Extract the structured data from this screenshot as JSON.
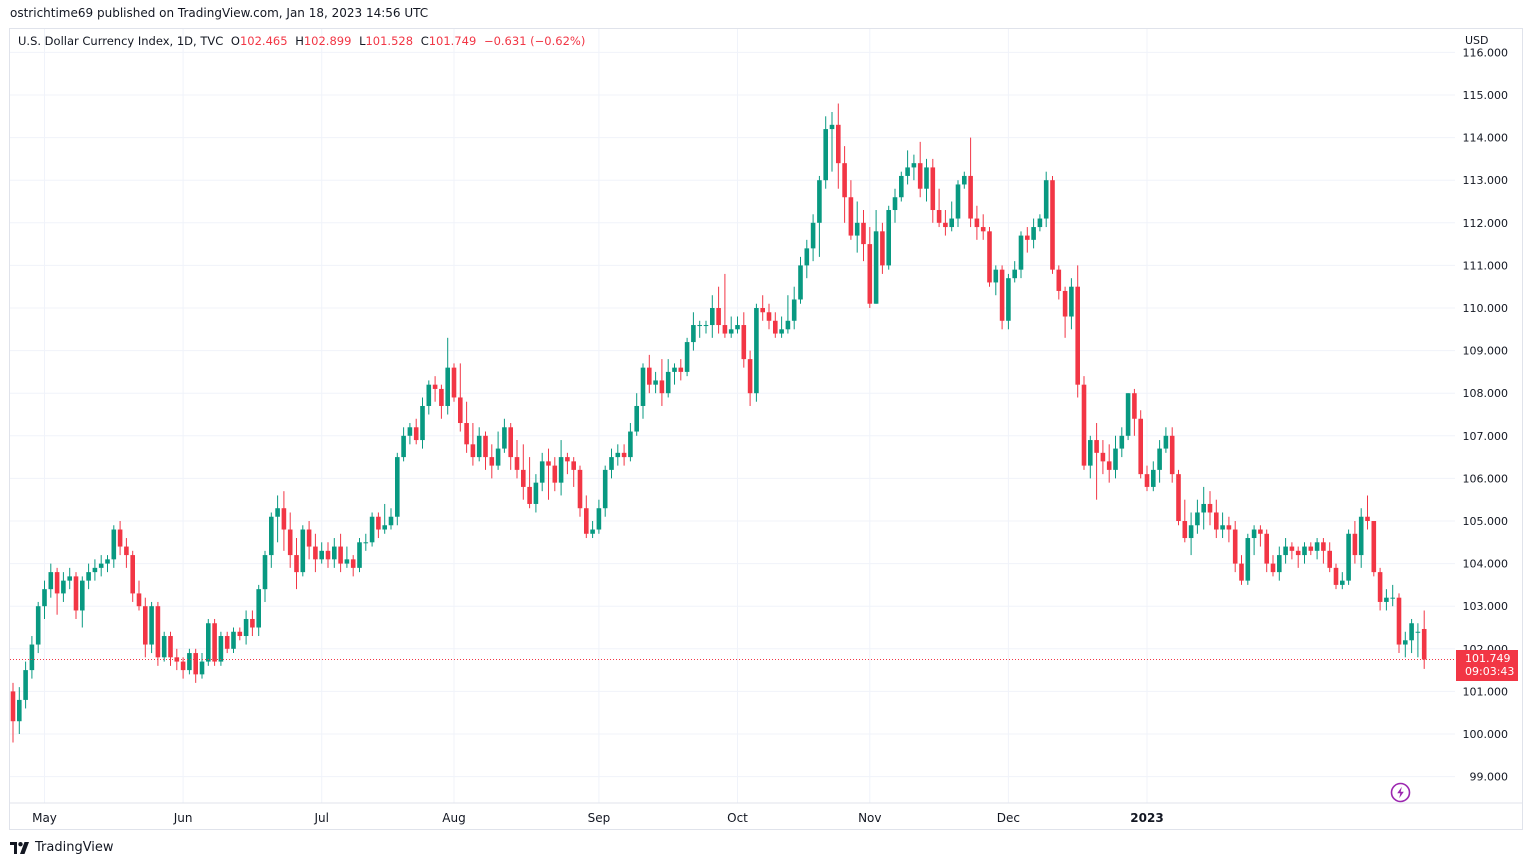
{
  "publication": {
    "author": "ostrichtime69",
    "text": "published on TradingView.com, Jan 18, 2023 14:56 UTC"
  },
  "legend": {
    "symbol": "U.S. Dollar Currency Index, 1D, TVC",
    "o_label": "O",
    "o_value": "102.465",
    "h_label": "H",
    "h_value": "102.899",
    "l_label": "L",
    "l_value": "101.528",
    "c_label": "C",
    "c_value": "101.749",
    "change": "−0.631 (−0.62%)"
  },
  "currency": "USD",
  "last_price": {
    "value": "101.749",
    "countdown": "09:03:43"
  },
  "footer": {
    "brand": "TradingView"
  },
  "colors": {
    "up": "#089981",
    "down": "#f23645",
    "grid": "#f0f3fa",
    "text": "#131722"
  },
  "chart_data": {
    "type": "candlestick",
    "y_ticks": [
      "99.000",
      "100.000",
      "101.000",
      "102.000",
      "103.000",
      "104.000",
      "105.000",
      "106.000",
      "107.000",
      "108.000",
      "109.000",
      "110.000",
      "111.000",
      "112.000",
      "113.000",
      "114.000",
      "115.000",
      "116.000"
    ],
    "ylim": [
      98.8,
      116.0
    ],
    "x_labels": [
      {
        "label": "May",
        "x": "2022-05-02"
      },
      {
        "label": "Jun",
        "x": "2022-06-01"
      },
      {
        "label": "Jul",
        "x": "2022-07-01"
      },
      {
        "label": "Aug",
        "x": "2022-08-01"
      },
      {
        "label": "Sep",
        "x": "2022-09-01"
      },
      {
        "label": "Oct",
        "x": "2022-10-03"
      },
      {
        "label": "Nov",
        "x": "2022-11-01"
      },
      {
        "label": "Dec",
        "x": "2022-12-01"
      },
      {
        "label": "2023",
        "x": "2023-01-02"
      }
    ],
    "last_close": 101.749,
    "candles": [
      [
        101.0,
        100.3,
        101.2,
        99.8
      ],
      [
        100.3,
        100.8,
        101.1,
        100.0
      ],
      [
        100.8,
        101.5,
        101.7,
        100.6
      ],
      [
        101.5,
        102.1,
        102.3,
        101.3
      ],
      [
        102.1,
        103.0,
        103.1,
        101.9
      ],
      [
        103.0,
        103.4,
        103.6,
        102.7
      ],
      [
        103.4,
        103.8,
        104.0,
        103.2
      ],
      [
        103.8,
        103.3,
        103.9,
        102.8
      ],
      [
        103.3,
        103.6,
        103.8,
        103.1
      ],
      [
        103.6,
        103.7,
        103.9,
        103.4
      ],
      [
        103.7,
        102.9,
        103.8,
        102.7
      ],
      [
        102.9,
        103.6,
        103.7,
        102.5
      ],
      [
        103.6,
        103.8,
        104.0,
        103.4
      ],
      [
        103.8,
        103.9,
        104.1,
        103.6
      ],
      [
        103.9,
        104.0,
        104.2,
        103.7
      ],
      [
        104.0,
        104.1,
        104.2,
        103.8
      ],
      [
        104.1,
        104.8,
        104.9,
        103.9
      ],
      [
        104.8,
        104.4,
        105.0,
        104.2
      ],
      [
        104.4,
        104.2,
        104.6,
        103.9
      ],
      [
        104.2,
        103.3,
        104.3,
        103.1
      ],
      [
        103.3,
        103.0,
        103.6,
        102.9
      ],
      [
        103.0,
        102.1,
        103.2,
        101.8
      ],
      [
        102.1,
        103.0,
        103.1,
        101.9
      ],
      [
        103.0,
        101.8,
        103.1,
        101.6
      ],
      [
        101.8,
        102.3,
        102.4,
        101.7
      ],
      [
        102.3,
        101.8,
        102.4,
        101.6
      ],
      [
        101.8,
        101.7,
        102.0,
        101.5
      ],
      [
        101.7,
        101.5,
        101.8,
        101.3
      ],
      [
        101.5,
        101.9,
        102.0,
        101.4
      ],
      [
        101.9,
        101.4,
        102.0,
        101.2
      ],
      [
        101.4,
        101.7,
        101.9,
        101.3
      ],
      [
        101.7,
        102.6,
        102.7,
        101.6
      ],
      [
        102.6,
        101.7,
        102.7,
        101.6
      ],
      [
        101.7,
        102.3,
        102.4,
        101.6
      ],
      [
        102.3,
        102.0,
        102.4,
        101.9
      ],
      [
        102.0,
        102.4,
        102.5,
        101.9
      ],
      [
        102.4,
        102.3,
        102.5,
        102.2
      ],
      [
        102.3,
        102.7,
        102.9,
        102.1
      ],
      [
        102.7,
        102.5,
        102.9,
        102.3
      ],
      [
        102.5,
        103.4,
        103.5,
        102.3
      ],
      [
        103.4,
        104.2,
        104.3,
        103.1
      ],
      [
        104.2,
        105.1,
        105.2,
        103.9
      ],
      [
        105.1,
        105.3,
        105.6,
        104.5
      ],
      [
        105.3,
        104.8,
        105.7,
        104.3
      ],
      [
        104.8,
        104.2,
        105.2,
        103.9
      ],
      [
        104.2,
        103.8,
        104.6,
        103.4
      ],
      [
        103.8,
        104.8,
        104.9,
        103.7
      ],
      [
        104.8,
        104.4,
        105.0,
        104.1
      ],
      [
        104.4,
        104.1,
        104.7,
        103.8
      ],
      [
        104.1,
        104.3,
        104.5,
        104.0
      ],
      [
        104.3,
        104.1,
        104.5,
        103.9
      ],
      [
        104.1,
        104.4,
        104.6,
        103.9
      ],
      [
        104.4,
        104.0,
        104.7,
        103.8
      ],
      [
        104.0,
        104.1,
        104.4,
        103.9
      ],
      [
        104.1,
        103.9,
        104.2,
        103.7
      ],
      [
        103.9,
        104.5,
        104.6,
        103.8
      ],
      [
        104.5,
        104.5,
        104.7,
        104.3
      ],
      [
        104.5,
        105.1,
        105.2,
        104.4
      ],
      [
        105.1,
        104.8,
        105.2,
        104.6
      ],
      [
        104.8,
        104.9,
        105.4,
        104.7
      ],
      [
        104.9,
        105.1,
        105.3,
        104.8
      ],
      [
        105.1,
        106.5,
        106.6,
        104.9
      ],
      [
        106.5,
        107.0,
        107.2,
        106.4
      ],
      [
        107.0,
        107.2,
        107.3,
        106.8
      ],
      [
        107.2,
        106.9,
        107.4,
        106.8
      ],
      [
        106.9,
        107.7,
        107.9,
        106.7
      ],
      [
        107.7,
        108.2,
        108.3,
        107.5
      ],
      [
        108.2,
        108.1,
        108.4,
        107.8
      ],
      [
        108.1,
        107.7,
        108.2,
        107.4
      ],
      [
        107.7,
        108.6,
        109.3,
        107.5
      ],
      [
        108.6,
        107.9,
        108.7,
        107.8
      ],
      [
        107.9,
        107.3,
        108.7,
        107.1
      ],
      [
        107.3,
        106.8,
        107.8,
        106.6
      ],
      [
        106.8,
        106.5,
        107.3,
        106.3
      ],
      [
        106.5,
        107.0,
        107.2,
        106.4
      ],
      [
        107.0,
        106.5,
        107.1,
        106.2
      ],
      [
        106.5,
        106.3,
        106.8,
        106.0
      ],
      [
        106.3,
        106.7,
        107.1,
        106.2
      ],
      [
        106.7,
        107.2,
        107.4,
        106.6
      ],
      [
        107.2,
        106.5,
        107.3,
        106.2
      ],
      [
        106.5,
        106.2,
        106.9,
        106.0
      ],
      [
        106.2,
        105.8,
        106.8,
        105.5
      ],
      [
        105.8,
        105.4,
        106.5,
        105.3
      ],
      [
        105.4,
        105.9,
        106.1,
        105.2
      ],
      [
        105.9,
        106.4,
        106.6,
        105.7
      ],
      [
        106.4,
        106.3,
        106.7,
        105.5
      ],
      [
        106.3,
        105.9,
        106.5,
        105.7
      ],
      [
        105.9,
        106.5,
        106.9,
        105.6
      ],
      [
        106.5,
        106.4,
        106.6,
        106.1
      ],
      [
        106.4,
        106.2,
        106.5,
        105.8
      ],
      [
        106.2,
        105.3,
        106.3,
        105.1
      ],
      [
        105.3,
        104.7,
        105.6,
        104.6
      ],
      [
        104.7,
        104.8,
        105.0,
        104.6
      ],
      [
        104.8,
        105.3,
        105.5,
        104.7
      ],
      [
        105.3,
        106.2,
        106.3,
        105.1
      ],
      [
        106.2,
        106.5,
        106.7,
        106.0
      ],
      [
        106.5,
        106.6,
        106.8,
        106.3
      ],
      [
        106.6,
        106.5,
        106.8,
        106.3
      ],
      [
        106.5,
        107.1,
        107.3,
        106.4
      ],
      [
        107.1,
        107.7,
        108.0,
        107.0
      ],
      [
        107.7,
        108.6,
        108.7,
        107.4
      ],
      [
        108.6,
        108.2,
        108.9,
        108.0
      ],
      [
        108.2,
        108.3,
        108.5,
        108.0
      ],
      [
        108.3,
        108.0,
        108.8,
        107.7
      ],
      [
        108.0,
        108.5,
        108.8,
        107.9
      ],
      [
        108.5,
        108.6,
        108.7,
        108.2
      ],
      [
        108.6,
        108.5,
        108.8,
        108.3
      ],
      [
        108.5,
        109.2,
        109.3,
        108.4
      ],
      [
        109.2,
        109.6,
        109.9,
        109.0
      ],
      [
        109.6,
        109.6,
        109.7,
        109.3
      ],
      [
        109.6,
        109.6,
        109.7,
        109.4
      ],
      [
        109.6,
        110.0,
        110.3,
        109.3
      ],
      [
        110.0,
        109.6,
        110.5,
        109.4
      ],
      [
        109.6,
        109.4,
        110.8,
        109.3
      ],
      [
        109.4,
        109.5,
        109.8,
        109.3
      ],
      [
        109.5,
        109.6,
        109.8,
        109.4
      ],
      [
        109.6,
        108.8,
        109.9,
        108.6
      ],
      [
        108.8,
        108.0,
        109.0,
        107.7
      ],
      [
        108.0,
        110.0,
        110.1,
        107.8
      ],
      [
        110.0,
        109.9,
        110.3,
        109.7
      ],
      [
        109.9,
        109.7,
        110.1,
        109.5
      ],
      [
        109.7,
        109.4,
        109.9,
        109.3
      ],
      [
        109.4,
        109.5,
        109.8,
        109.3
      ],
      [
        109.5,
        109.7,
        110.3,
        109.4
      ],
      [
        109.7,
        110.2,
        110.5,
        109.5
      ],
      [
        110.2,
        111.0,
        111.2,
        110.1
      ],
      [
        111.0,
        111.4,
        111.6,
        110.7
      ],
      [
        111.4,
        112.0,
        112.2,
        111.1
      ],
      [
        112.0,
        113.0,
        113.1,
        111.2
      ],
      [
        113.0,
        114.2,
        114.5,
        112.8
      ],
      [
        114.2,
        114.3,
        114.6,
        113.2
      ],
      [
        114.3,
        113.4,
        114.8,
        112.8
      ],
      [
        113.4,
        112.6,
        113.8,
        112.0
      ],
      [
        112.6,
        111.7,
        113.0,
        111.6
      ],
      [
        111.7,
        112.0,
        112.5,
        111.3
      ],
      [
        112.0,
        111.5,
        112.3,
        111.1
      ],
      [
        111.5,
        110.1,
        111.9,
        110.0
      ],
      [
        110.1,
        111.8,
        112.3,
        110.1
      ],
      [
        111.8,
        111.0,
        112.0,
        110.8
      ],
      [
        111.0,
        112.3,
        112.4,
        110.9
      ],
      [
        112.3,
        112.6,
        112.8,
        112.0
      ],
      [
        112.6,
        113.1,
        113.2,
        112.5
      ],
      [
        113.1,
        113.3,
        113.7,
        112.9
      ],
      [
        113.3,
        113.4,
        113.6,
        113.0
      ],
      [
        113.4,
        112.8,
        113.9,
        112.6
      ],
      [
        112.8,
        113.3,
        113.5,
        112.5
      ],
      [
        113.3,
        112.3,
        113.5,
        112.0
      ],
      [
        112.3,
        112.0,
        112.8,
        111.9
      ],
      [
        112.0,
        111.9,
        112.3,
        111.7
      ],
      [
        111.9,
        112.1,
        112.5,
        111.8
      ],
      [
        112.1,
        112.9,
        113.0,
        111.9
      ],
      [
        112.9,
        113.1,
        113.2,
        112.8
      ],
      [
        113.1,
        112.1,
        114.0,
        111.9
      ],
      [
        112.1,
        111.9,
        112.4,
        111.6
      ],
      [
        111.9,
        111.8,
        112.2,
        111.6
      ],
      [
        111.8,
        110.6,
        111.9,
        110.5
      ],
      [
        110.6,
        110.9,
        111.0,
        110.3
      ],
      [
        110.9,
        109.7,
        111.0,
        109.5
      ],
      [
        109.7,
        110.7,
        110.8,
        109.5
      ],
      [
        110.7,
        110.9,
        111.1,
        110.6
      ],
      [
        110.9,
        111.7,
        111.8,
        110.7
      ],
      [
        111.7,
        111.6,
        111.9,
        111.3
      ],
      [
        111.6,
        111.9,
        112.1,
        111.4
      ],
      [
        111.9,
        112.1,
        112.2,
        111.8
      ],
      [
        112.1,
        113.0,
        113.2,
        111.9
      ],
      [
        113.0,
        110.9,
        113.1,
        110.8
      ],
      [
        110.9,
        110.4,
        111.0,
        110.2
      ],
      [
        110.4,
        109.8,
        110.5,
        109.3
      ],
      [
        109.8,
        110.5,
        110.7,
        109.5
      ],
      [
        110.5,
        108.2,
        111.0,
        107.9
      ],
      [
        108.2,
        106.3,
        108.4,
        106.2
      ],
      [
        106.3,
        106.9,
        107.0,
        106.0
      ],
      [
        106.9,
        106.6,
        107.3,
        105.5
      ],
      [
        106.6,
        106.4,
        106.9,
        106.1
      ],
      [
        106.4,
        106.2,
        106.8,
        105.9
      ],
      [
        106.2,
        106.7,
        107.0,
        106.0
      ],
      [
        106.7,
        107.0,
        107.2,
        106.5
      ],
      [
        107.0,
        108.0,
        108.0,
        106.9
      ],
      [
        108.0,
        107.4,
        108.1,
        107.0
      ],
      [
        107.4,
        106.1,
        107.6,
        106.0
      ],
      [
        106.1,
        105.8,
        106.3,
        105.7
      ],
      [
        105.8,
        106.2,
        106.4,
        105.7
      ],
      [
        106.2,
        106.7,
        106.9,
        105.9
      ],
      [
        106.7,
        107.0,
        107.2,
        106.6
      ],
      [
        107.0,
        106.1,
        107.2,
        105.9
      ],
      [
        106.1,
        105.0,
        106.2,
        104.9
      ],
      [
        105.0,
        104.6,
        105.5,
        104.5
      ],
      [
        104.6,
        104.9,
        105.2,
        104.2
      ],
      [
        104.9,
        105.2,
        105.5,
        104.7
      ],
      [
        105.2,
        105.4,
        105.8,
        104.8
      ],
      [
        105.4,
        105.2,
        105.7,
        104.9
      ],
      [
        105.2,
        104.8,
        105.5,
        104.6
      ],
      [
        104.8,
        104.9,
        105.2,
        104.6
      ],
      [
        104.9,
        104.8,
        105.1,
        104.5
      ],
      [
        104.8,
        104.0,
        105.0,
        103.8
      ],
      [
        104.0,
        103.6,
        104.2,
        103.5
      ],
      [
        103.6,
        104.6,
        104.7,
        103.5
      ],
      [
        104.6,
        104.8,
        104.9,
        104.2
      ],
      [
        104.8,
        104.7,
        104.9,
        104.4
      ],
      [
        104.7,
        104.0,
        104.8,
        103.8
      ],
      [
        104.0,
        103.8,
        104.2,
        103.7
      ],
      [
        103.8,
        104.2,
        104.4,
        103.6
      ],
      [
        104.2,
        104.4,
        104.6,
        104.0
      ],
      [
        104.4,
        104.3,
        104.5,
        104.1
      ],
      [
        104.3,
        104.2,
        104.4,
        103.9
      ],
      [
        104.2,
        104.4,
        104.5,
        104.0
      ],
      [
        104.4,
        104.3,
        104.5,
        104.2
      ],
      [
        104.3,
        104.5,
        104.6,
        104.1
      ],
      [
        104.5,
        104.3,
        104.6,
        104.0
      ],
      [
        104.3,
        103.9,
        104.5,
        103.8
      ],
      [
        103.9,
        103.5,
        104.0,
        103.4
      ],
      [
        103.5,
        103.6,
        103.8,
        103.4
      ],
      [
        103.6,
        104.7,
        104.8,
        103.5
      ],
      [
        104.7,
        104.2,
        105.0,
        104.0
      ],
      [
        104.2,
        105.1,
        105.3,
        103.9
      ],
      [
        105.1,
        105.0,
        105.6,
        104.8
      ],
      [
        105.0,
        103.8,
        105.0,
        103.7
      ],
      [
        103.8,
        103.1,
        103.9,
        102.9
      ],
      [
        103.1,
        103.2,
        103.4,
        102.9
      ],
      [
        103.2,
        103.2,
        103.5,
        103.0
      ],
      [
        103.2,
        102.1,
        103.3,
        101.9
      ],
      [
        102.1,
        102.2,
        102.4,
        101.8
      ],
      [
        102.2,
        102.6,
        102.7,
        101.9
      ],
      [
        102.4,
        102.4,
        102.6,
        101.8
      ],
      [
        102.465,
        101.749,
        102.899,
        101.528
      ]
    ]
  }
}
